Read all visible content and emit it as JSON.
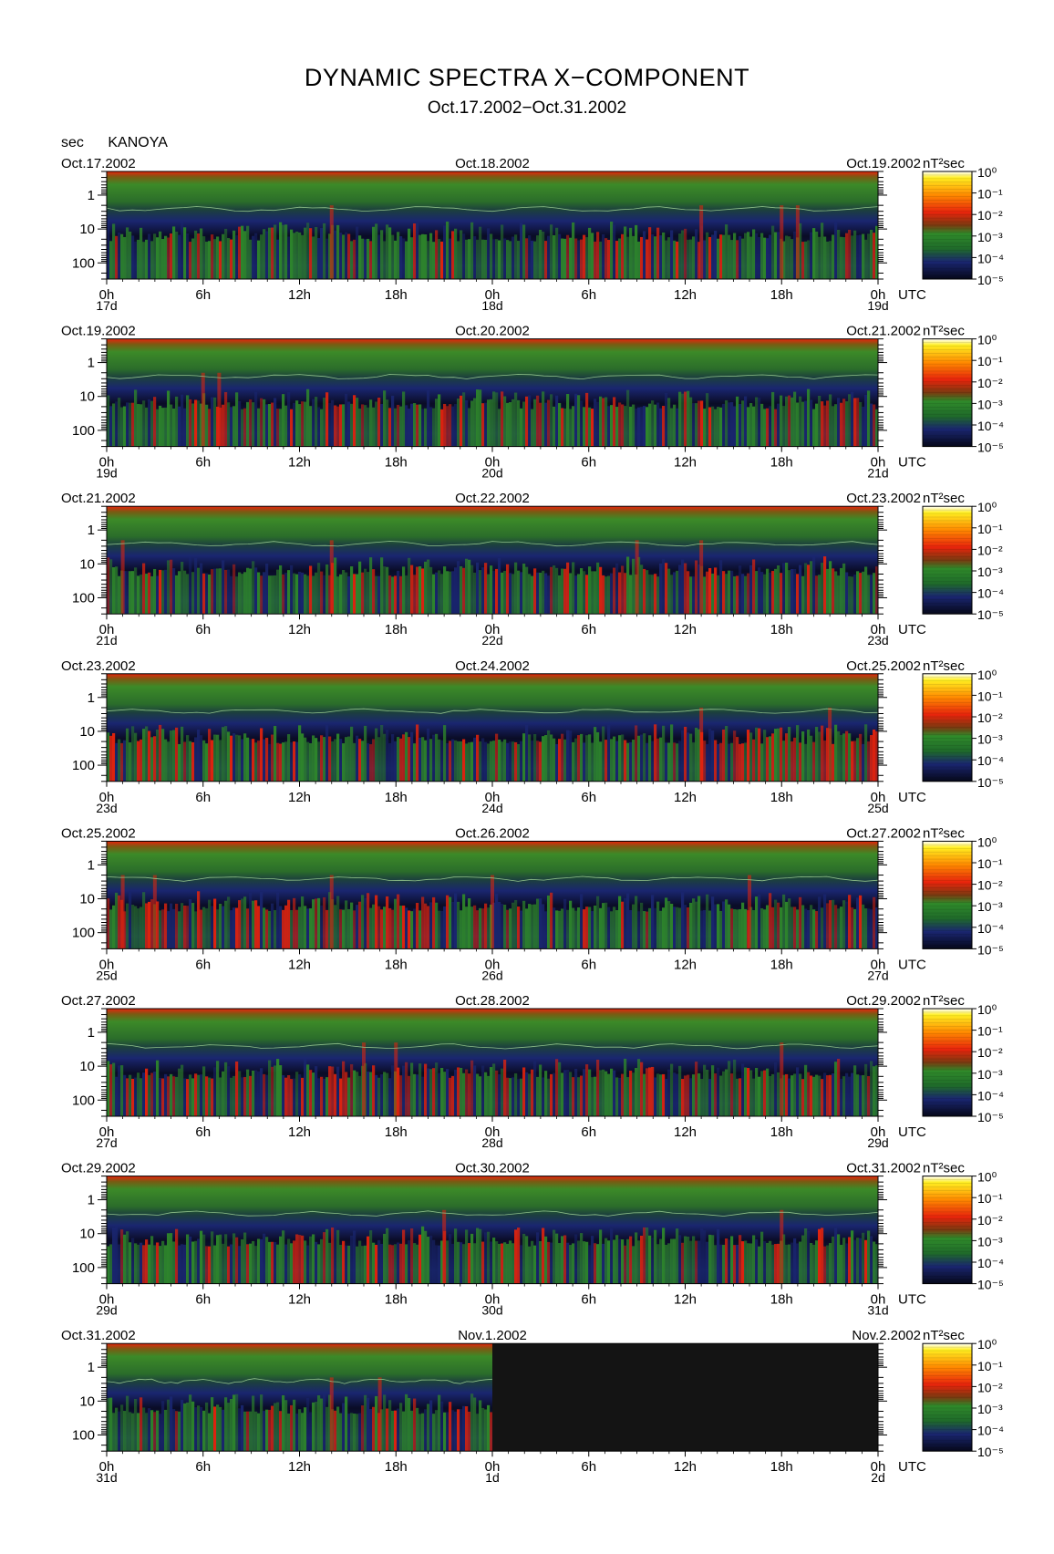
{
  "title": "DYNAMIC SPECTRA X−COMPONENT",
  "subtitle": "Oct.17.2002−Oct.31.2002",
  "y_unit": "sec",
  "station": "KANOYA",
  "colorbar_unit": "nT²sec",
  "time_zone_label": "UTC",
  "colors": {
    "background_dark": "#0a0c26",
    "deep_blue": "#1a2670",
    "green": "#2f8a2a",
    "red": "#e8240c",
    "orange": "#ff8a00",
    "yellow": "#ffee20"
  },
  "chart_data": {
    "type": "heatmap",
    "title": "DYNAMIC SPECTRA X−COMPONENT",
    "subtitle": "Oct.17.2002−Oct.31.2002",
    "ylabel": "sec",
    "y_scale": "log",
    "y_ticks": [
      "1",
      "10",
      "100"
    ],
    "y_range_sec": [
      0.2,
      300
    ],
    "x_ticks": [
      "0h",
      "6h",
      "12h",
      "18h",
      "0h",
      "6h",
      "12h",
      "18h",
      "0h"
    ],
    "colorbar_ticks": [
      "10⁰",
      "10⁻¹",
      "10⁻²",
      "10⁻³",
      "10⁻⁴",
      "10⁻⁵"
    ],
    "colorbar_range": [
      1e-05,
      1
    ],
    "colorbar_unit": "nT²sec",
    "panels": [
      {
        "dates": [
          "Oct.17.2002",
          "Oct.18.2002",
          "Oct.19.2002"
        ],
        "day_labels": [
          "17d",
          "18d",
          "19d"
        ],
        "no_data_after_hours": null,
        "activity": "moderate",
        "events_hours": [
          14,
          37,
          42,
          43
        ]
      },
      {
        "dates": [
          "Oct.19.2002",
          "Oct.20.2002",
          "Oct.21.2002"
        ],
        "day_labels": [
          "19d",
          "20d",
          "21d"
        ],
        "no_data_after_hours": null,
        "activity": "moderate",
        "events_hours": [
          6,
          7
        ]
      },
      {
        "dates": [
          "Oct.21.2002",
          "Oct.22.2002",
          "Oct.23.2002"
        ],
        "day_labels": [
          "21d",
          "22d",
          "23d"
        ],
        "no_data_after_hours": null,
        "activity": "moderate",
        "events_hours": [
          1,
          14,
          33,
          37
        ]
      },
      {
        "dates": [
          "Oct.23.2002",
          "Oct.24.2002",
          "Oct.25.2002"
        ],
        "day_labels": [
          "23d",
          "24d",
          "25d"
        ],
        "no_data_after_hours": null,
        "activity": "high",
        "events_hours": [
          37,
          45
        ]
      },
      {
        "dates": [
          "Oct.25.2002",
          "Oct.26.2002",
          "Oct.27.2002"
        ],
        "day_labels": [
          "25d",
          "26d",
          "27d"
        ],
        "no_data_after_hours": null,
        "activity": "high",
        "events_hours": [
          1,
          3,
          14,
          24,
          40
        ]
      },
      {
        "dates": [
          "Oct.27.2002",
          "Oct.28.2002",
          "Oct.29.2002"
        ],
        "day_labels": [
          "27d",
          "28d",
          "29d"
        ],
        "no_data_after_hours": null,
        "activity": "high",
        "events_hours": [
          16,
          18,
          42
        ]
      },
      {
        "dates": [
          "Oct.29.2002",
          "Oct.30.2002",
          "Oct.31.2002"
        ],
        "day_labels": [
          "29d",
          "30d",
          "31d"
        ],
        "no_data_after_hours": null,
        "activity": "moderate",
        "events_hours": [
          21,
          42
        ]
      },
      {
        "dates": [
          "Oct.31.2002",
          "Nov.1.2002",
          "Nov.2.2002"
        ],
        "day_labels": [
          "31d",
          "1d",
          "2d"
        ],
        "no_data_after_hours": 24,
        "activity": "moderate",
        "events_hours": [
          14,
          17
        ]
      }
    ]
  }
}
